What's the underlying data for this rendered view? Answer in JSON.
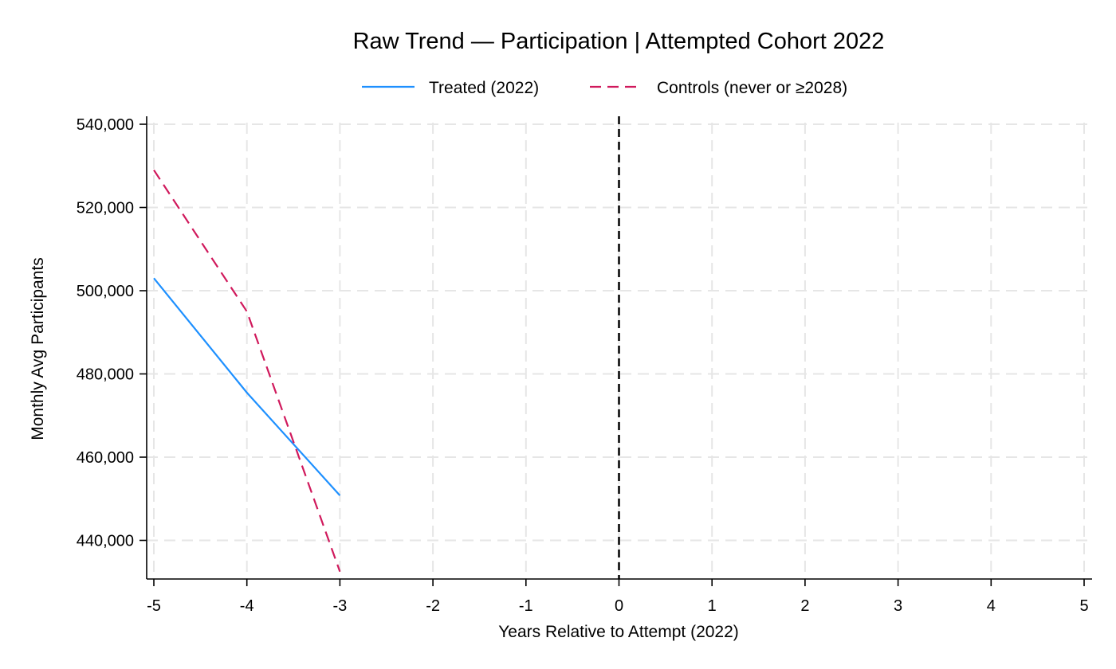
{
  "chart_data": {
    "type": "line",
    "title": "Raw Trend — Participation | Attempted Cohort 2022",
    "xlabel": "Years Relative to Attempt (2022)",
    "ylabel": "Monthly Avg Participants",
    "xlim": [
      -5,
      5
    ],
    "ylim": [
      430000,
      540000
    ],
    "x_ticks": [
      -5,
      -4,
      -3,
      -2,
      -1,
      0,
      1,
      2,
      3,
      4,
      5
    ],
    "x_tick_labels": [
      "-5",
      "-4",
      "-3",
      "-2",
      "-1",
      "0",
      "1",
      "2",
      "3",
      "4",
      "5"
    ],
    "y_ticks": [
      440000,
      460000,
      480000,
      500000,
      520000,
      540000
    ],
    "y_tick_labels": [
      "440,000",
      "460,000",
      "480,000",
      "500,000",
      "520,000",
      "540,000"
    ],
    "grid": true,
    "legend_position": "top",
    "reference_line_x": 0,
    "series": [
      {
        "name": "Treated (2022)",
        "color": "#1e90ff",
        "style": "solid",
        "x": [
          -5,
          -4,
          -3
        ],
        "y": [
          503000,
          475500,
          450800
        ]
      },
      {
        "name": "Controls (never or ≥2028)",
        "color": "#d0195c",
        "style": "dashed",
        "x": [
          -5,
          -4,
          -3
        ],
        "y": [
          529000,
          495000,
          432500
        ]
      }
    ]
  }
}
